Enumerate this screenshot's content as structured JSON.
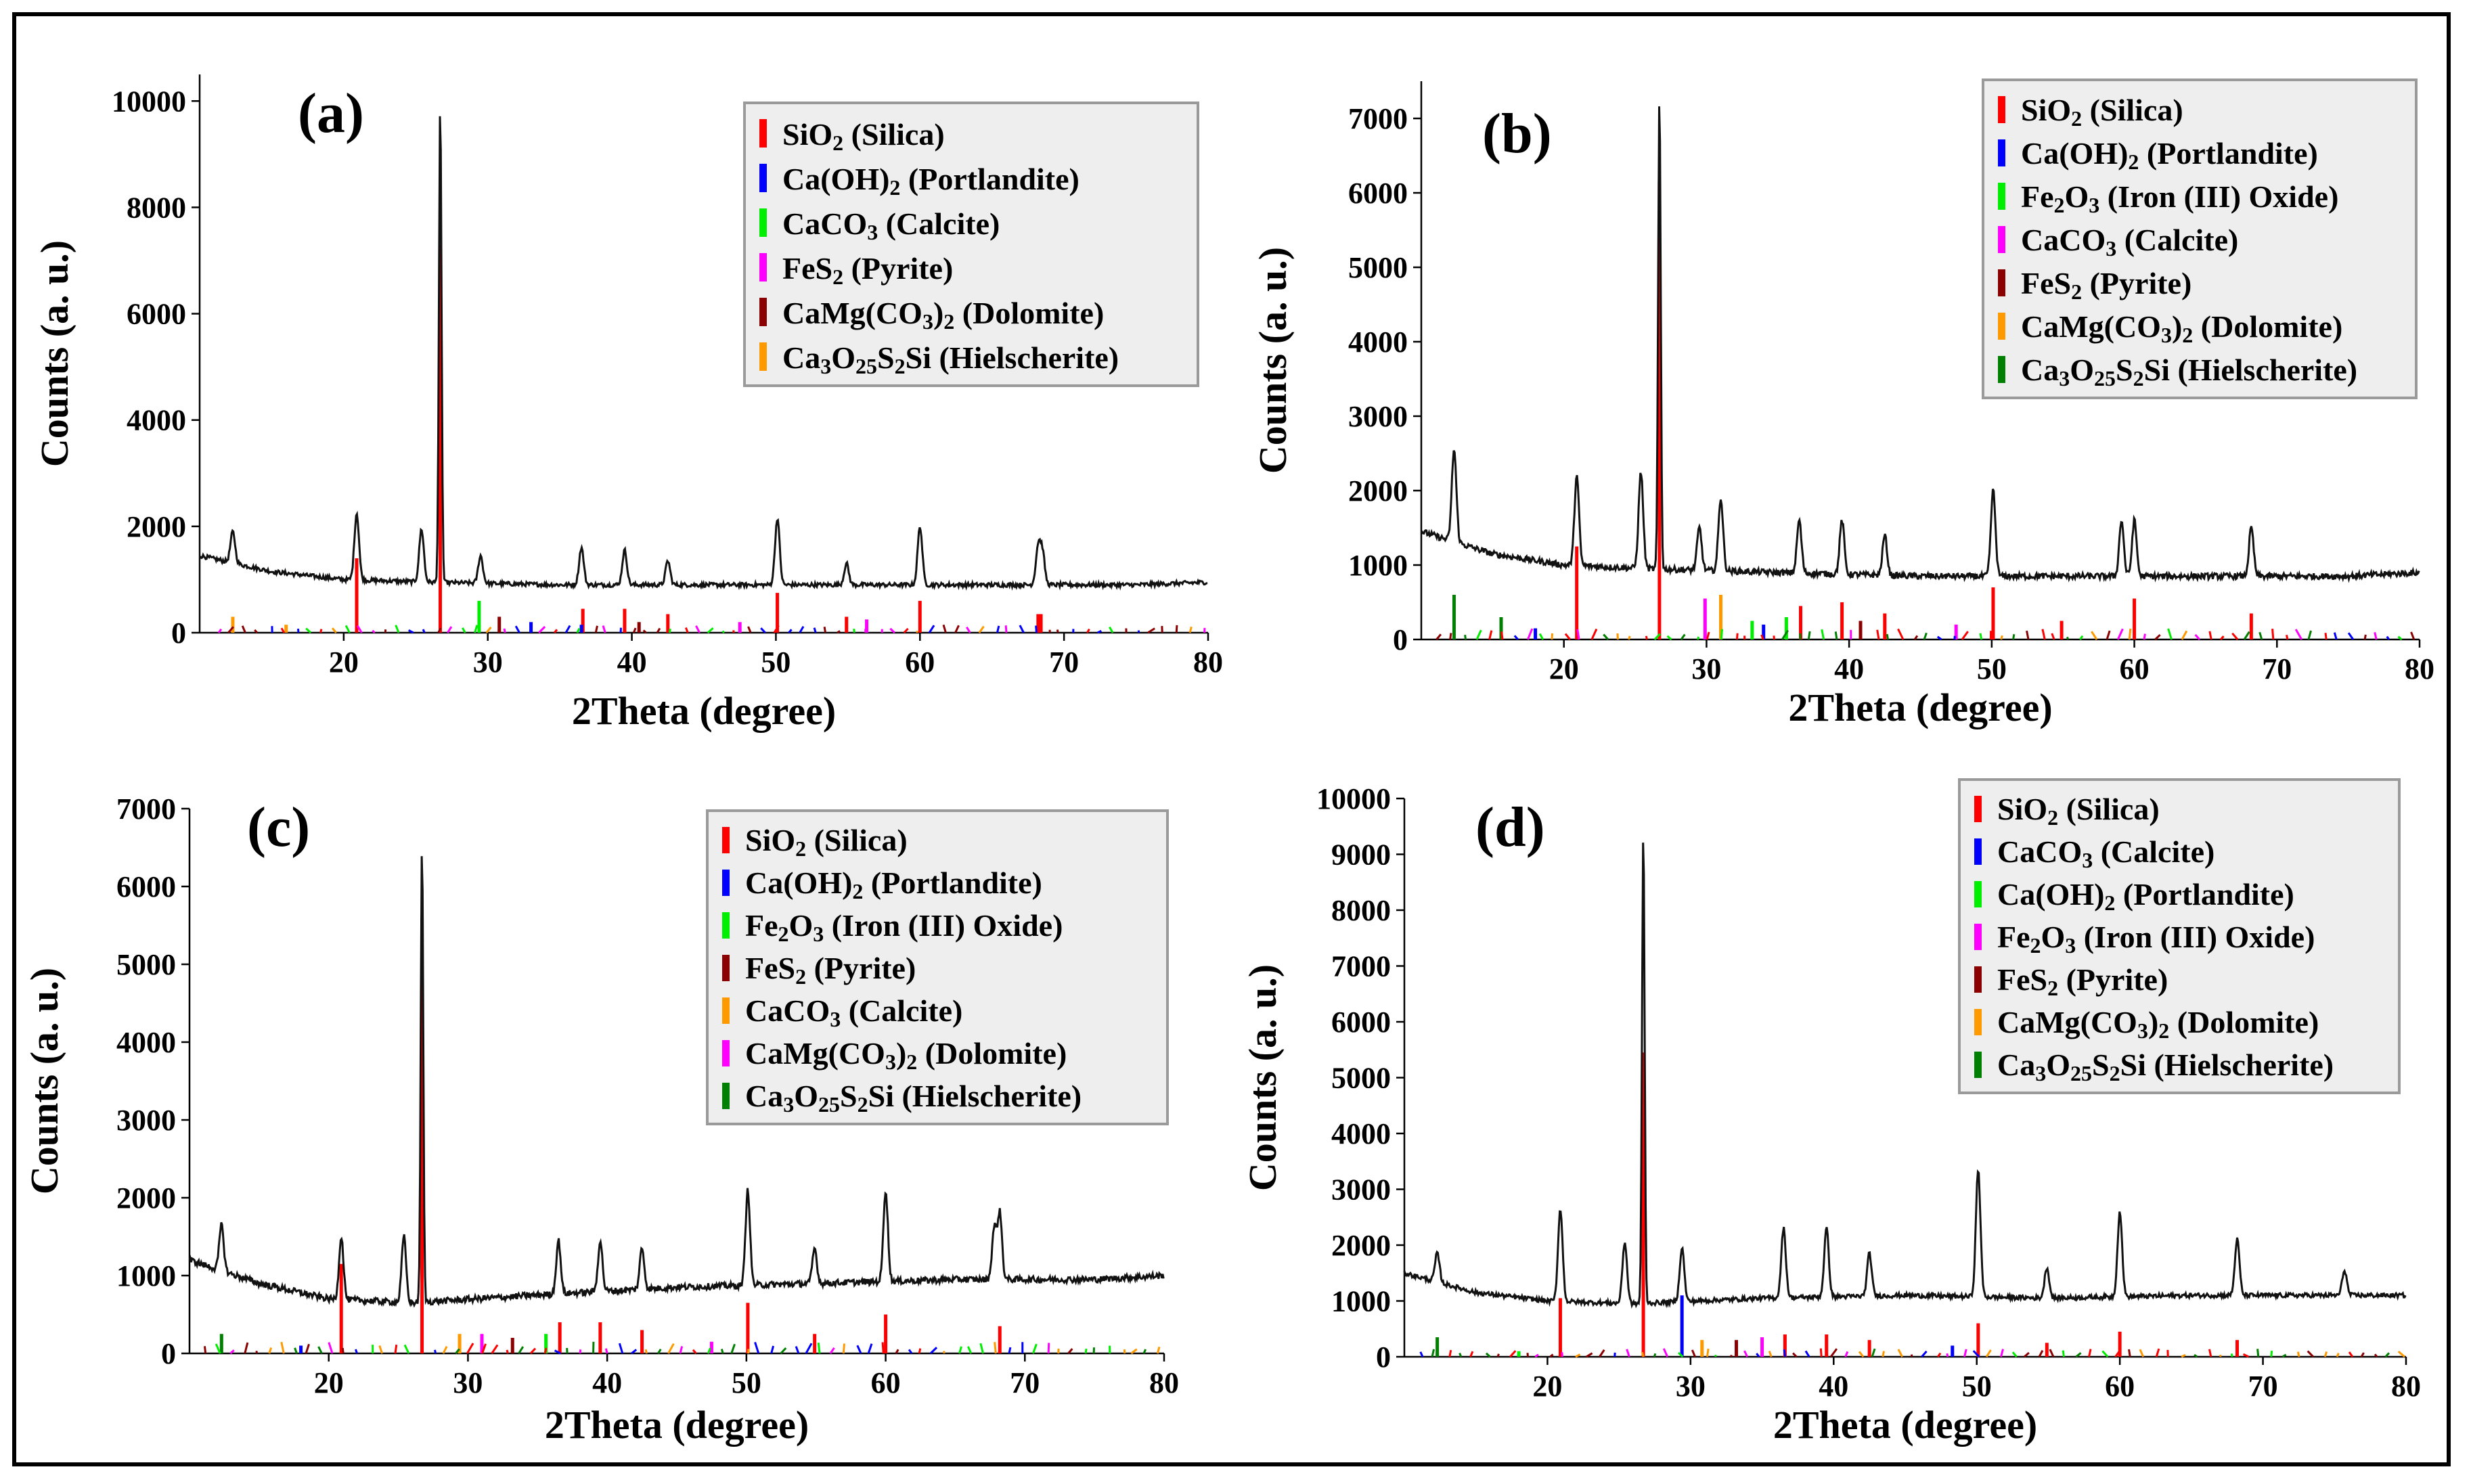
{
  "figure": {
    "description_panels": [
      "a",
      "b",
      "c",
      "d"
    ]
  },
  "chart_data": [
    {
      "type": "line",
      "panel_label": "(a)",
      "xlabel": "2Theta (degree)",
      "ylabel": "Counts (a. u.)",
      "xlim": [
        10,
        80
      ],
      "ylim": [
        0,
        10500
      ],
      "xticks": [
        20,
        30,
        40,
        50,
        60,
        70,
        80
      ],
      "yticks": [
        0,
        2000,
        4000,
        6000,
        8000,
        10000
      ],
      "xticklabels": [
        "20",
        "30",
        "40",
        "50",
        "60",
        "70",
        "80"
      ],
      "yticklabels": [
        "0",
        "2000",
        "4000",
        "6000",
        "8000",
        "10000"
      ],
      "baseline": [
        [
          10,
          1450
        ],
        [
          15,
          1150
        ],
        [
          20,
          1000
        ],
        [
          26,
          950
        ],
        [
          35,
          900
        ],
        [
          45,
          900
        ],
        [
          55,
          900
        ],
        [
          65,
          900
        ],
        [
          75,
          900
        ],
        [
          80,
          950
        ]
      ],
      "peaks": [
        [
          12.3,
          1900
        ],
        [
          20.9,
          2250
        ],
        [
          25.4,
          1950
        ],
        [
          26.7,
          9900
        ],
        [
          29.5,
          1450
        ],
        [
          36.5,
          1600
        ],
        [
          39.5,
          1550
        ],
        [
          42.5,
          1350
        ],
        [
          50.1,
          2150
        ],
        [
          54.9,
          1300
        ],
        [
          60.0,
          2000
        ],
        [
          68.2,
          1600
        ],
        [
          68.5,
          1500
        ]
      ],
      "legend": [
        {
          "label": "SiO₂ (Silica)",
          "color": "#ff0000"
        },
        {
          "label": "Ca(OH)₂ (Portlandite)",
          "color": "#0000ff"
        },
        {
          "label": "CaCO₃ (Calcite)",
          "color": "#00ee00"
        },
        {
          "label": "FeS₂ (Pyrite)",
          "color": "#ff00ff"
        },
        {
          "label": "CaMg(CO₃)₂ (Dolomite)",
          "color": "#8b0000"
        },
        {
          "label": "Ca₃O₂₅S₂Si (Hielscherite)",
          "color": "#ff9900"
        }
      ],
      "reference_lines": [
        {
          "x": 20.9,
          "y": 1400,
          "color": "#ff0000"
        },
        {
          "x": 26.7,
          "y": 7300,
          "color": "#ff0000"
        },
        {
          "x": 36.6,
          "y": 450,
          "color": "#ff0000"
        },
        {
          "x": 39.5,
          "y": 450,
          "color": "#ff0000"
        },
        {
          "x": 42.5,
          "y": 350,
          "color": "#ff0000"
        },
        {
          "x": 50.1,
          "y": 750,
          "color": "#ff0000"
        },
        {
          "x": 54.9,
          "y": 300,
          "color": "#ff0000"
        },
        {
          "x": 60.0,
          "y": 600,
          "color": "#ff0000"
        },
        {
          "x": 68.2,
          "y": 350,
          "color": "#ff0000"
        },
        {
          "x": 68.4,
          "y": 350,
          "color": "#ff0000"
        },
        {
          "x": 29.4,
          "y": 600,
          "color": "#00ee00"
        },
        {
          "x": 12.3,
          "y": 300,
          "color": "#ff9900"
        },
        {
          "x": 16.0,
          "y": 150,
          "color": "#ff9900"
        },
        {
          "x": 36.5,
          "y": 150,
          "color": "#0000ff"
        },
        {
          "x": 33.0,
          "y": 200,
          "color": "#0000ff"
        },
        {
          "x": 56.3,
          "y": 250,
          "color": "#ff00ff"
        },
        {
          "x": 47.5,
          "y": 200,
          "color": "#ff00ff"
        },
        {
          "x": 40.5,
          "y": 200,
          "color": "#8b0000"
        },
        {
          "x": 30.8,
          "y": 300,
          "color": "#8b0000"
        }
      ]
    },
    {
      "type": "line",
      "panel_label": "(b)",
      "xlabel": "2Theta (degree)",
      "ylabel": "Counts (a. u.)",
      "xlim": [
        10,
        80
      ],
      "ylim": [
        0,
        7500
      ],
      "xticks": [
        20,
        30,
        40,
        50,
        60,
        70,
        80
      ],
      "yticks": [
        0,
        1000,
        2000,
        3000,
        4000,
        5000,
        6000,
        7000
      ],
      "xticklabels": [
        "20",
        "30",
        "40",
        "50",
        "60",
        "70",
        "80"
      ],
      "yticklabels": [
        "0",
        "1000",
        "2000",
        "3000",
        "4000",
        "5000",
        "6000",
        "7000"
      ],
      "baseline": [
        [
          10,
          1450
        ],
        [
          15,
          1150
        ],
        [
          20,
          1000
        ],
        [
          26,
          950
        ],
        [
          35,
          900
        ],
        [
          45,
          850
        ],
        [
          55,
          850
        ],
        [
          65,
          850
        ],
        [
          75,
          850
        ],
        [
          80,
          900
        ]
      ],
      "peaks": [
        [
          12.3,
          2550
        ],
        [
          20.9,
          2200
        ],
        [
          25.4,
          2250
        ],
        [
          26.7,
          7300
        ],
        [
          29.5,
          1500
        ],
        [
          31.0,
          1900
        ],
        [
          36.5,
          1600
        ],
        [
          39.5,
          1600
        ],
        [
          42.5,
          1400
        ],
        [
          50.1,
          2000
        ],
        [
          59.1,
          1600
        ],
        [
          60.0,
          1600
        ],
        [
          68.2,
          1500
        ]
      ],
      "legend": [
        {
          "label": "SiO₂ (Silica)",
          "color": "#ff0000"
        },
        {
          "label": "Ca(OH)₂ (Portlandite)",
          "color": "#0000ff"
        },
        {
          "label": "Fe₂O₃ (Iron (III) Oxide)",
          "color": "#00ee00"
        },
        {
          "label": "CaCO₃ (Calcite)",
          "color": "#ff00ff"
        },
        {
          "label": "FeS₂ (Pyrite)",
          "color": "#8b0000"
        },
        {
          "label": "CaMg(CO₃)₂ (Dolomite)",
          "color": "#ff9900"
        },
        {
          "label": "Ca₃O₂₅S₂Si (Hielscherite)",
          "color": "#008000"
        }
      ],
      "reference_lines": [
        {
          "x": 20.9,
          "y": 1250,
          "color": "#ff0000"
        },
        {
          "x": 26.7,
          "y": 6150,
          "color": "#ff0000"
        },
        {
          "x": 36.6,
          "y": 450,
          "color": "#ff0000"
        },
        {
          "x": 39.5,
          "y": 500,
          "color": "#ff0000"
        },
        {
          "x": 42.5,
          "y": 350,
          "color": "#ff0000"
        },
        {
          "x": 50.1,
          "y": 700,
          "color": "#ff0000"
        },
        {
          "x": 54.9,
          "y": 250,
          "color": "#ff0000"
        },
        {
          "x": 60.0,
          "y": 550,
          "color": "#ff0000"
        },
        {
          "x": 68.2,
          "y": 350,
          "color": "#ff0000"
        },
        {
          "x": 12.3,
          "y": 600,
          "color": "#008000"
        },
        {
          "x": 15.6,
          "y": 300,
          "color": "#008000"
        },
        {
          "x": 29.9,
          "y": 550,
          "color": "#ff00ff"
        },
        {
          "x": 31.0,
          "y": 600,
          "color": "#ff9900"
        },
        {
          "x": 33.2,
          "y": 250,
          "color": "#00ee00"
        },
        {
          "x": 35.6,
          "y": 300,
          "color": "#00ee00"
        },
        {
          "x": 34.0,
          "y": 200,
          "color": "#0000ff"
        },
        {
          "x": 18.0,
          "y": 150,
          "color": "#0000ff"
        },
        {
          "x": 47.5,
          "y": 200,
          "color": "#ff00ff"
        },
        {
          "x": 40.8,
          "y": 250,
          "color": "#8b0000"
        }
      ]
    },
    {
      "type": "line",
      "panel_label": "(c)",
      "xlabel": "2Theta (degree)",
      "ylabel": "Counts (a. u.)",
      "xlim": [
        10,
        80
      ],
      "ylim": [
        0,
        7000
      ],
      "xticks": [
        20,
        30,
        40,
        50,
        60,
        70,
        80
      ],
      "yticks": [
        0,
        1000,
        2000,
        3000,
        4000,
        5000,
        6000,
        7000
      ],
      "xticklabels": [
        "20",
        "30",
        "40",
        "50",
        "60",
        "70",
        "80"
      ],
      "yticklabels": [
        "0",
        "1000",
        "2000",
        "3000",
        "4000",
        "5000",
        "6000",
        "7000"
      ],
      "baseline": [
        [
          10,
          1200
        ],
        [
          15,
          900
        ],
        [
          20,
          700
        ],
        [
          26,
          650
        ],
        [
          35,
          750
        ],
        [
          45,
          850
        ],
        [
          55,
          900
        ],
        [
          65,
          950
        ],
        [
          75,
          950
        ],
        [
          80,
          1000
        ]
      ],
      "peaks": [
        [
          12.3,
          1650
        ],
        [
          20.9,
          1500
        ],
        [
          25.4,
          1500
        ],
        [
          26.7,
          6500
        ],
        [
          36.5,
          1450
        ],
        [
          39.5,
          1450
        ],
        [
          42.5,
          1350
        ],
        [
          50.1,
          2100
        ],
        [
          54.9,
          1350
        ],
        [
          60.0,
          2100
        ],
        [
          68.2,
          1800
        ],
        [
          67.8,
          1600
        ]
      ],
      "legend": [
        {
          "label": "SiO₂ (Silica)",
          "color": "#ff0000"
        },
        {
          "label": "Ca(OH)₂ (Portlandite)",
          "color": "#0000ff"
        },
        {
          "label": "Fe₂O₃ (Iron (III) Oxide)",
          "color": "#00ee00"
        },
        {
          "label": "FeS₂ (Pyrite)",
          "color": "#8b0000"
        },
        {
          "label": "CaCO₃ (Calcite)",
          "color": "#ff9900"
        },
        {
          "label": "CaMg(CO₃)₂ (Dolomite)",
          "color": "#ff00ff"
        },
        {
          "label": "Ca₃O₂₅S₂Si (Hielscherite)",
          "color": "#008000"
        }
      ],
      "reference_lines": [
        {
          "x": 20.9,
          "y": 1150,
          "color": "#ff0000"
        },
        {
          "x": 26.7,
          "y": 5600,
          "color": "#ff0000"
        },
        {
          "x": 36.6,
          "y": 400,
          "color": "#ff0000"
        },
        {
          "x": 39.5,
          "y": 400,
          "color": "#ff0000"
        },
        {
          "x": 42.5,
          "y": 300,
          "color": "#ff0000"
        },
        {
          "x": 50.1,
          "y": 650,
          "color": "#ff0000"
        },
        {
          "x": 54.9,
          "y": 250,
          "color": "#ff0000"
        },
        {
          "x": 60.0,
          "y": 500,
          "color": "#ff0000"
        },
        {
          "x": 68.2,
          "y": 350,
          "color": "#ff0000"
        },
        {
          "x": 12.3,
          "y": 250,
          "color": "#008000"
        },
        {
          "x": 29.4,
          "y": 250,
          "color": "#ff9900"
        },
        {
          "x": 31.0,
          "y": 250,
          "color": "#ff00ff"
        },
        {
          "x": 35.6,
          "y": 250,
          "color": "#00ee00"
        },
        {
          "x": 33.2,
          "y": 200,
          "color": "#8b0000"
        },
        {
          "x": 18.0,
          "y": 100,
          "color": "#0000ff"
        },
        {
          "x": 47.5,
          "y": 150,
          "color": "#ff00ff"
        }
      ]
    },
    {
      "type": "line",
      "panel_label": "(d)",
      "xlabel": "2Theta (degree)",
      "ylabel": "Counts (a. u.)",
      "xlim": [
        10,
        80
      ],
      "ylim": [
        0,
        10000
      ],
      "xticks": [
        20,
        30,
        40,
        50,
        60,
        70,
        80
      ],
      "yticks": [
        0,
        1000,
        2000,
        3000,
        4000,
        5000,
        6000,
        7000,
        8000,
        9000,
        10000
      ],
      "xticklabels": [
        "20",
        "30",
        "40",
        "50",
        "60",
        "70",
        "80"
      ],
      "yticklabels": [
        "0",
        "1000",
        "2000",
        "3000",
        "4000",
        "5000",
        "6000",
        "7000",
        "8000",
        "9000",
        "10000"
      ],
      "baseline": [
        [
          10,
          1500
        ],
        [
          15,
          1150
        ],
        [
          20,
          1000
        ],
        [
          26,
          950
        ],
        [
          35,
          1050
        ],
        [
          45,
          1100
        ],
        [
          55,
          1050
        ],
        [
          65,
          1100
        ],
        [
          75,
          1100
        ],
        [
          80,
          1100
        ]
      ],
      "peaks": [
        [
          12.3,
          1850
        ],
        [
          20.9,
          2650
        ],
        [
          25.4,
          2050
        ],
        [
          26.7,
          9400
        ],
        [
          29.4,
          1950
        ],
        [
          36.5,
          2300
        ],
        [
          39.5,
          2300
        ],
        [
          42.5,
          1850
        ],
        [
          50.1,
          3350
        ],
        [
          54.9,
          1600
        ],
        [
          60.0,
          2600
        ],
        [
          68.2,
          2100
        ],
        [
          75.7,
          1550
        ]
      ],
      "legend": [
        {
          "label": "SiO₂ (Silica)",
          "color": "#ff0000"
        },
        {
          "label": "CaCO₃ (Calcite)",
          "color": "#0000ff"
        },
        {
          "label": "Ca(OH)₂ (Portlandite)",
          "color": "#00ee00"
        },
        {
          "label": "Fe₂O₃ (Iron (III) Oxide)",
          "color": "#ff00ff"
        },
        {
          "label": "FeS₂ (Pyrite)",
          "color": "#8b0000"
        },
        {
          "label": "CaMg(CO₃)₂ (Dolomite)",
          "color": "#ff9900"
        },
        {
          "label": "Ca₃O₂₅S₂Si (Hielscherite)",
          "color": "#008000"
        }
      ],
      "reference_lines": [
        {
          "x": 20.9,
          "y": 1050,
          "color": "#ff0000"
        },
        {
          "x": 26.7,
          "y": 5450,
          "color": "#ff0000"
        },
        {
          "x": 29.4,
          "y": 1100,
          "color": "#0000ff"
        },
        {
          "x": 36.6,
          "y": 400,
          "color": "#ff0000"
        },
        {
          "x": 39.5,
          "y": 400,
          "color": "#ff0000"
        },
        {
          "x": 42.5,
          "y": 300,
          "color": "#ff0000"
        },
        {
          "x": 50.1,
          "y": 600,
          "color": "#ff0000"
        },
        {
          "x": 54.9,
          "y": 250,
          "color": "#ff0000"
        },
        {
          "x": 60.0,
          "y": 450,
          "color": "#ff0000"
        },
        {
          "x": 68.2,
          "y": 300,
          "color": "#ff0000"
        },
        {
          "x": 12.3,
          "y": 350,
          "color": "#008000"
        },
        {
          "x": 30.8,
          "y": 300,
          "color": "#ff9900"
        },
        {
          "x": 35.0,
          "y": 350,
          "color": "#ff00ff"
        },
        {
          "x": 48.3,
          "y": 200,
          "color": "#0000ff"
        },
        {
          "x": 33.2,
          "y": 300,
          "color": "#8b0000"
        },
        {
          "x": 18.0,
          "y": 100,
          "color": "#00ee00"
        }
      ]
    }
  ]
}
